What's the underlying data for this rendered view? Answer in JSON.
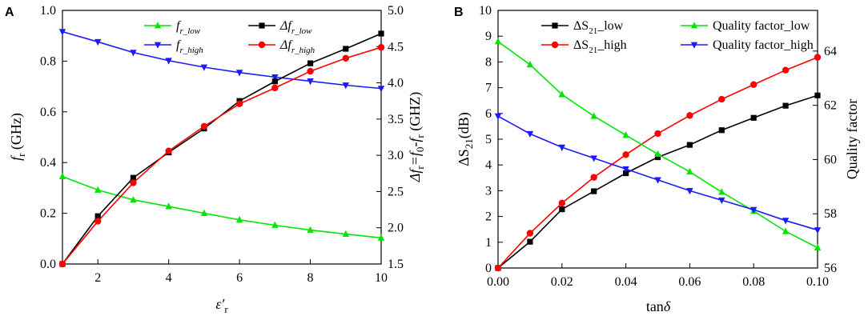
{
  "chart_data": [
    {
      "type": "line",
      "panel_label": "A",
      "x": [
        1,
        2,
        3,
        4,
        5,
        6,
        7,
        8,
        9,
        10
      ],
      "xlim": [
        1,
        10
      ],
      "xticks": [
        2,
        4,
        6,
        8,
        10
      ],
      "xlabel": {
        "main": "ε′",
        "sub": "r"
      },
      "ylabel_left": {
        "main": "f",
        "sub": "r",
        "unit": "(GHz)"
      },
      "ylim_left": [
        0.0,
        1.0
      ],
      "yticks_left": [
        "0.0",
        "0.2",
        "0.4",
        "0.6",
        "0.8",
        "1.0"
      ],
      "ylabel_right": {
        "text": "Δf",
        "sub1": "r",
        "eq": "=f",
        "sub2": "0",
        "minus": "-f",
        "sub3": "r",
        "unit": "(GHZ)"
      },
      "ylim_right": [
        1.5,
        5.0
      ],
      "yticks_right": [
        "1.5",
        "2.0",
        "2.5",
        "3.0",
        "3.5",
        "4.0",
        "4.5",
        "5.0"
      ],
      "series": [
        {
          "name": "f_r_low",
          "legend_main": "f",
          "legend_sub": "r_low",
          "axis": "left",
          "color": "#00e600",
          "marker": "triangle-up",
          "values": [
            0.345,
            0.292,
            0.253,
            0.227,
            0.2,
            0.174,
            0.153,
            0.134,
            0.118,
            0.103
          ]
        },
        {
          "name": "f_r_high",
          "legend_main": "f",
          "legend_sub": "r_high",
          "axis": "left",
          "color": "#1a1aff",
          "marker": "triangle-down",
          "values": [
            0.916,
            0.876,
            0.834,
            0.802,
            0.776,
            0.755,
            0.737,
            0.721,
            0.705,
            0.692
          ]
        },
        {
          "name": "delta_f_r_low",
          "legend_main": "Δf",
          "legend_sub": "r_low",
          "axis": "right",
          "color": "#000000",
          "marker": "square",
          "values": [
            1.5,
            2.16,
            2.69,
            3.04,
            3.37,
            3.75,
            4.02,
            4.27,
            4.47,
            4.68
          ]
        },
        {
          "name": "delta_f_r_high",
          "legend_main": "Δf",
          "legend_sub": "r_high",
          "axis": "right",
          "color": "#ff0000",
          "marker": "circle",
          "values": [
            1.5,
            2.09,
            2.62,
            3.06,
            3.4,
            3.71,
            3.93,
            4.16,
            4.34,
            4.49
          ]
        }
      ]
    },
    {
      "type": "line",
      "panel_label": "B",
      "x": [
        0.0,
        0.01,
        0.02,
        0.03,
        0.04,
        0.05,
        0.06,
        0.07,
        0.08,
        0.09,
        0.1
      ],
      "xlim": [
        0.0,
        0.1
      ],
      "xticks": [
        "0.00",
        "0.02",
        "0.04",
        "0.06",
        "0.08",
        "0.10"
      ],
      "xlabel": {
        "main": "tan",
        "greek": "δ"
      },
      "ylabel_left": {
        "main": "ΔS",
        "sub": "21",
        "unit": "(dB)"
      },
      "ylim_left": [
        0,
        10
      ],
      "yticks_left": [
        "0",
        "1",
        "2",
        "3",
        "4",
        "5",
        "6",
        "7",
        "8",
        "9",
        "10"
      ],
      "ylabel_right": {
        "text": "Quality factor"
      },
      "ylim_right": [
        56,
        65.5
      ],
      "yticks_right": [
        "56",
        "58",
        "60",
        "62",
        "64"
      ],
      "series": [
        {
          "name": "ΔS21_low",
          "legend_main": "ΔS",
          "legend_sub": "21",
          "legend_tail": "_low",
          "axis": "left",
          "color": "#000000",
          "marker": "square",
          "values": [
            0.0,
            1.02,
            2.28,
            2.98,
            3.68,
            4.3,
            4.78,
            5.35,
            5.83,
            6.3,
            6.7
          ]
        },
        {
          "name": "ΔS21_high",
          "legend_main": "ΔS",
          "legend_sub": "21",
          "legend_tail": "_high",
          "axis": "left",
          "color": "#ff0000",
          "marker": "circle",
          "values": [
            0.0,
            1.35,
            2.52,
            3.52,
            4.4,
            5.22,
            5.92,
            6.55,
            7.12,
            7.68,
            8.18
          ]
        },
        {
          "name": "Quality factor_low",
          "legend_main": "Quality factor_low",
          "axis": "right",
          "color": "#00e600",
          "marker": "triangle-up",
          "values": [
            64.35,
            63.5,
            62.4,
            61.6,
            60.9,
            60.2,
            59.55,
            58.8,
            58.1,
            57.35,
            56.75
          ]
        },
        {
          "name": "Quality factor_high",
          "legend_main": "Quality factor_high",
          "axis": "right",
          "color": "#1a1aff",
          "marker": "triangle-down",
          "values": [
            61.6,
            60.95,
            60.45,
            60.05,
            59.65,
            59.25,
            58.85,
            58.5,
            58.15,
            57.75,
            57.4
          ]
        }
      ]
    }
  ]
}
